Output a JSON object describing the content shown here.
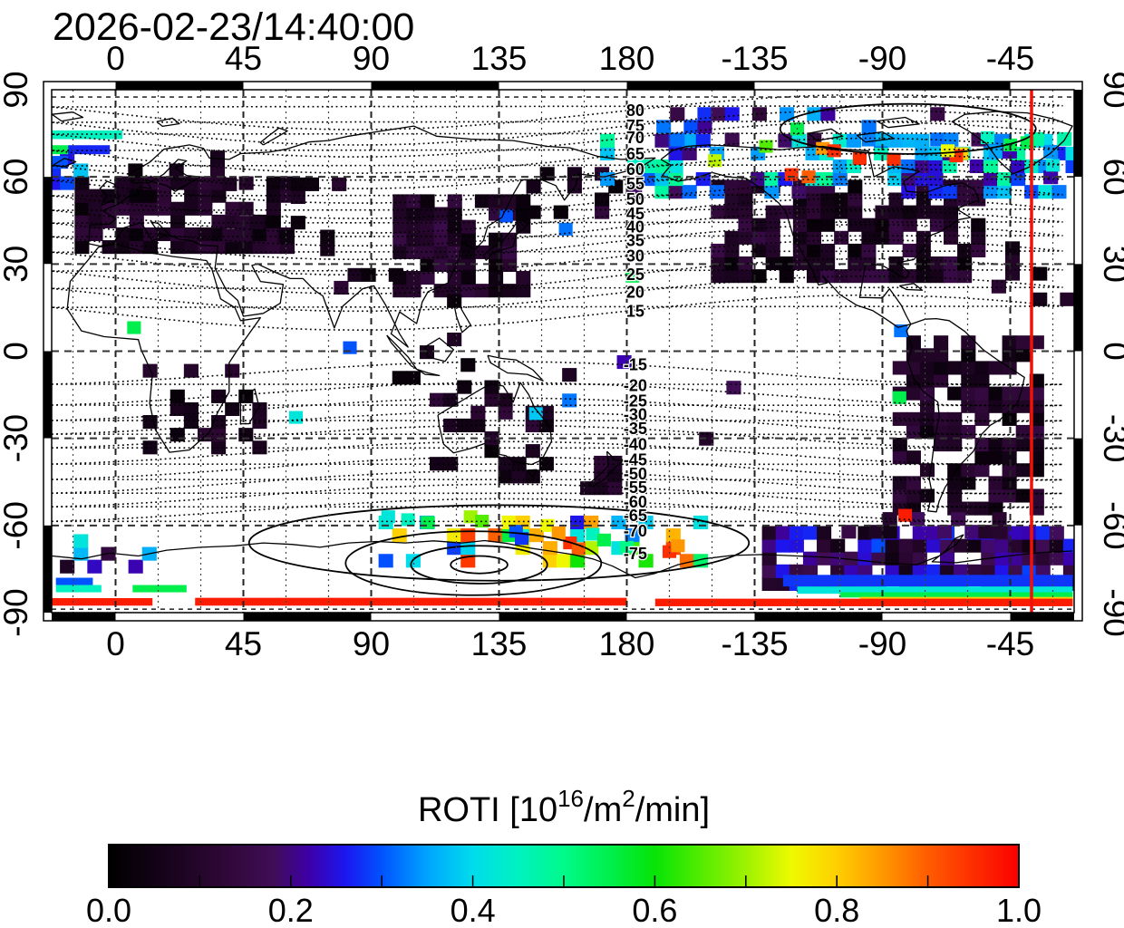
{
  "chart_data": {
    "type": "heatmap",
    "subtype": "global-ionosphere-roti-map",
    "title": "2026-02-23/14:40:00",
    "projection": "equirectangular",
    "lon_range": [
      -22.5,
      337.5
    ],
    "lat_range": [
      -90,
      90
    ],
    "lon_ticks": [
      {
        "label": "0",
        "lon": 0
      },
      {
        "label": "45",
        "lon": 45
      },
      {
        "label": "90",
        "lon": 90
      },
      {
        "label": "135",
        "lon": 135
      },
      {
        "label": "180",
        "lon": 180
      },
      {
        "label": "-135",
        "lon": -135
      },
      {
        "label": "-90",
        "lon": -90
      },
      {
        "label": "-45",
        "lon": -45
      }
    ],
    "lat_ticks": [
      {
        "label": "90",
        "lat": 90
      },
      {
        "label": "60",
        "lat": 60
      },
      {
        "label": "30",
        "lat": 30
      },
      {
        "label": "0",
        "lat": 0
      },
      {
        "label": "-30",
        "lat": -30
      },
      {
        "label": "-60",
        "lat": -60
      },
      {
        "label": "-90",
        "lat": -90
      }
    ],
    "grid": {
      "lon_minor_step": 15,
      "lon_major_step": 45,
      "lat_step": 30
    },
    "marker_meridian": {
      "lon": -37.5,
      "color": "#ee1208"
    },
    "contour_label_lon": 183,
    "contours_north": [
      {
        "value": "80",
        "lat": 82.8
      },
      {
        "value": "75",
        "lat": 77.5
      },
      {
        "value": "70",
        "lat": 73.4
      },
      {
        "value": "65",
        "lat": 67.8
      },
      {
        "value": "60",
        "lat": 62.5
      },
      {
        "value": "55",
        "lat": 57.5
      },
      {
        "value": "50",
        "lat": 52.2
      },
      {
        "value": "45",
        "lat": 47.2
      },
      {
        "value": "40",
        "lat": 42.8
      },
      {
        "value": "35",
        "lat": 38.1
      },
      {
        "value": "30",
        "lat": 32.8
      },
      {
        "value": "25",
        "lat": 26.3
      },
      {
        "value": "20",
        "lat": 20.3
      },
      {
        "value": "15",
        "lat": 13.8
      }
    ],
    "contours_south": [
      {
        "value": "-15",
        "lat": -4.7
      },
      {
        "value": "-20",
        "lat": -11.9
      },
      {
        "value": "-25",
        "lat": -17.2
      },
      {
        "value": "-30",
        "lat": -21.9
      },
      {
        "value": "-35",
        "lat": -26.6
      },
      {
        "value": "-40",
        "lat": -32.2
      },
      {
        "value": "-45",
        "lat": -37.5
      },
      {
        "value": "-50",
        "lat": -42.2
      },
      {
        "value": "-55",
        "lat": -46.9
      },
      {
        "value": "-60",
        "lat": -51.9
      },
      {
        "value": "-65",
        "lat": -56.6
      },
      {
        "value": "-70",
        "lat": -61.9
      },
      {
        "value": "-75",
        "lat": -69.7
      }
    ],
    "solid_contours": {
      "north_oval": {
        "clon": 279,
        "clat": 76.5,
        "rlon": 45,
        "rlat": 8.6
      },
      "south_ovals": [
        {
          "clon": 128,
          "clat": -73.5,
          "rlon": 10,
          "rlat": 3
        },
        {
          "clon": 128,
          "clat": -73.5,
          "rlon": 24,
          "rlat": 6.5
        },
        {
          "clon": 126,
          "clat": -73,
          "rlon": 45,
          "rlat": 11
        },
        {
          "clon": 135,
          "clat": -66,
          "rlon": 88,
          "rlat": 13
        }
      ]
    },
    "colormap": [
      {
        "v": 0.0,
        "c": "#000000"
      },
      {
        "v": 0.06,
        "c": "#16031a"
      },
      {
        "v": 0.12,
        "c": "#2c0733"
      },
      {
        "v": 0.18,
        "c": "#400d55"
      },
      {
        "v": 0.22,
        "c": "#3d00a8"
      },
      {
        "v": 0.26,
        "c": "#1c16f0"
      },
      {
        "v": 0.3,
        "c": "#0053ff"
      },
      {
        "v": 0.35,
        "c": "#00a4ff"
      },
      {
        "v": 0.4,
        "c": "#00dcec"
      },
      {
        "v": 0.45,
        "c": "#00f2c0"
      },
      {
        "v": 0.5,
        "c": "#00fa8a"
      },
      {
        "v": 0.55,
        "c": "#00ef4d"
      },
      {
        "v": 0.6,
        "c": "#06e406"
      },
      {
        "v": 0.65,
        "c": "#52ec00"
      },
      {
        "v": 0.7,
        "c": "#9df200"
      },
      {
        "v": 0.75,
        "c": "#eefa00"
      },
      {
        "v": 0.8,
        "c": "#ffcf00"
      },
      {
        "v": 0.85,
        "c": "#ff9800"
      },
      {
        "v": 0.9,
        "c": "#ff5c00"
      },
      {
        "v": 1.0,
        "c": "#fb0000"
      }
    ],
    "colorbar": {
      "title_parts": [
        {
          "t": "ROTI  [10"
        },
        {
          "t": "16",
          "sup": true
        },
        {
          "t": "/m"
        },
        {
          "t": "2",
          "sup": true
        },
        {
          "t": "/min]"
        }
      ],
      "range": [
        0,
        1
      ],
      "minor_tick_step": 0.1,
      "ticks": [
        {
          "label": "0.0",
          "v": 0.0
        },
        {
          "label": "0.2",
          "v": 0.2
        },
        {
          "label": "0.4",
          "v": 0.4
        },
        {
          "label": "0.6",
          "v": 0.6
        },
        {
          "label": "0.8",
          "v": 0.8
        },
        {
          "label": "1.0",
          "v": 1.0
        }
      ]
    },
    "cell_size_deg": {
      "lon": 4.82,
      "lat": 4.4
    },
    "regions": [
      {
        "name": "europe",
        "lon": [
          -12,
          62
        ],
        "lat": [
          36,
          58
        ],
        "density": 0.72,
        "value": [
          0.02,
          0.13
        ],
        "seed": 7
      },
      {
        "name": "north-europe",
        "lon": [
          2,
          40
        ],
        "lat": [
          58,
          67
        ],
        "density": 0.18,
        "value": [
          0.03,
          0.11
        ],
        "seed": 8
      },
      {
        "name": "central-asia",
        "lon": [
          40,
          96
        ],
        "lat": [
          40,
          58
        ],
        "density": 0.22,
        "value": [
          0.02,
          0.12
        ],
        "seed": 9
      },
      {
        "name": "south-asia",
        "lon": [
          60,
          100
        ],
        "lat": [
          22,
          40
        ],
        "density": 0.18,
        "value": [
          0.02,
          0.12
        ],
        "seed": 10
      },
      {
        "name": "east-asia",
        "lon": [
          100,
          147
        ],
        "lat": [
          21,
          53
        ],
        "density": 0.72,
        "value": [
          0.02,
          0.16
        ],
        "seed": 11
      },
      {
        "name": "kamchatka",
        "lon": [
          147,
          176
        ],
        "lat": [
          48,
          62
        ],
        "density": 0.3,
        "value": [
          0.02,
          0.14
        ],
        "seed": 12
      },
      {
        "name": "se-asia",
        "lon": [
          95,
          130
        ],
        "lat": [
          -9,
          18
        ],
        "density": 0.08,
        "value": [
          0.02,
          0.1
        ],
        "seed": 13
      },
      {
        "name": "north-america",
        "lon": [
          212,
          306
        ],
        "lat": [
          26,
          57
        ],
        "density": 0.72,
        "value": [
          0.02,
          0.16
        ],
        "seed": 14
      },
      {
        "name": "atlantic-dots",
        "lon": [
          306,
          337
        ],
        "lat": [
          18,
          40
        ],
        "density": 0.2,
        "value": [
          0.02,
          0.12
        ],
        "seed": 15
      },
      {
        "name": "northern-auroral-band",
        "lon": [
          173,
          337
        ],
        "lat": [
          55,
          73
        ],
        "density": 0.5,
        "value": [
          0.18,
          0.5
        ],
        "seed": 16
      },
      {
        "name": "arctic-dots",
        "lon": [
          188,
          322
        ],
        "lat": [
          73,
          85
        ],
        "density": 0.25,
        "value": [
          0.12,
          0.38
        ],
        "seed": 17
      },
      {
        "name": "south-america",
        "lon": [
          276,
          325
        ],
        "lat": [
          -54,
          6
        ],
        "density": 0.68,
        "value": [
          0.02,
          0.15
        ],
        "seed": 18
      },
      {
        "name": "southern-africa",
        "lon": [
          12,
          52
        ],
        "lat": [
          -33,
          -3
        ],
        "density": 0.38,
        "value": [
          0.02,
          0.12
        ],
        "seed": 19
      },
      {
        "name": "australia",
        "lon": [
          113,
          154
        ],
        "lat": [
          -43,
          -11
        ],
        "density": 0.3,
        "value": [
          0.02,
          0.13
        ],
        "seed": 20
      },
      {
        "name": "new-zealand",
        "lon": [
          166,
          179
        ],
        "lat": [
          -47,
          -34
        ],
        "density": 0.5,
        "value": [
          0.03,
          0.13
        ],
        "seed": 21
      },
      {
        "name": "antarctic-right",
        "lon": [
          230,
          337
        ],
        "lat": [
          -80,
          -62
        ],
        "density": 0.78,
        "value": [
          0.04,
          0.3
        ],
        "seed": 22
      },
      {
        "name": "antarctic-right-upper",
        "lon": [
          258,
          312
        ],
        "lat": [
          -62,
          -54
        ],
        "density": 0.5,
        "value": [
          0.04,
          0.2
        ],
        "seed": 28
      },
      {
        "name": "southern-auroral-oval",
        "lon": [
          95,
          210
        ],
        "lat": [
          -72,
          -57
        ],
        "density": 0.42,
        "value": [
          0.25,
          0.95
        ],
        "seed": 23
      },
      {
        "name": "antarctic-left",
        "lon": [
          -22,
          30
        ],
        "lat": [
          -74,
          -64
        ],
        "density": 0.3,
        "value": [
          0.05,
          0.45
        ],
        "seed": 24
      },
      {
        "name": "pacific-dots",
        "lon": [
          150,
          230
        ],
        "lat": [
          -30,
          0
        ],
        "density": 0.06,
        "value": [
          0.05,
          0.35
        ],
        "seed": 25
      },
      {
        "name": "greenland-band",
        "lon": [
          305,
          337
        ],
        "lat": [
          60,
          76
        ],
        "density": 0.4,
        "value": [
          0.2,
          0.55
        ],
        "seed": 26
      },
      {
        "name": "iceland-edge",
        "lon": [
          -22,
          -8
        ],
        "lat": [
          58,
          74
        ],
        "density": 0.45,
        "value": [
          0.25,
          0.5
        ],
        "seed": 27
      }
    ],
    "strips": [
      {
        "name": "nw-cyan-bar",
        "lon": [
          -22.5,
          2.4
        ],
        "lat": [
          73,
          76
        ],
        "value": 0.45
      },
      {
        "name": "nw-green",
        "lon": [
          -22.5,
          -16.7
        ],
        "lat": [
          67.8,
          70.9
        ],
        "value": 0.55
      },
      {
        "name": "nw-blue",
        "lon": [
          -16.7,
          -2
        ],
        "lat": [
          67.8,
          70.9
        ],
        "value": 0.27
      },
      {
        "name": "nw-blue2",
        "lon": [
          -22.5,
          -16.7
        ],
        "lat": [
          62.8,
          67.2
        ],
        "value": 0.3
      },
      {
        "name": "sr-blue-band",
        "lon": [
          235,
          337
        ],
        "lat": [
          -81,
          -77
        ],
        "value": 0.28
      },
      {
        "name": "sr-cyan-band",
        "lon": [
          240,
          337
        ],
        "lat": [
          -83.5,
          -81
        ],
        "value": 0.42
      },
      {
        "name": "sr-green-band",
        "lon": [
          255,
          337
        ],
        "lat": [
          -84.8,
          -83
        ],
        "value": 0.55
      },
      {
        "name": "sr-orange-band",
        "lon": [
          262,
          337
        ],
        "lat": [
          -86,
          -84.6
        ],
        "value": 0.8
      },
      {
        "name": "sr-red-band",
        "lon": [
          190,
          337
        ],
        "lat": [
          -87.8,
          -85.2
        ],
        "value": 0.97
      },
      {
        "name": "sm-red-band",
        "lon": [
          28,
          180
        ],
        "lat": [
          -87.6,
          -84.9
        ],
        "value": 0.97
      },
      {
        "name": "sl-red-band",
        "lon": [
          -22.5,
          13
        ],
        "lat": [
          -87.6,
          -85
        ],
        "value": 0.97
      },
      {
        "name": "sl-cyan",
        "lon": [
          -21,
          -5
        ],
        "lat": [
          -83,
          -80.5
        ],
        "value": 0.45
      },
      {
        "name": "sl-green",
        "lon": [
          6,
          25
        ],
        "lat": [
          -83,
          -80.5
        ],
        "value": 0.55
      },
      {
        "name": "sl-blue",
        "lon": [
          -21,
          -8
        ],
        "lat": [
          -80.5,
          -78
        ],
        "value": 0.3
      }
    ],
    "points": [
      {
        "lon": 6.5,
        "lat": 8.1,
        "value": 0.55
      },
      {
        "lon": 82.5,
        "lat": 1.2,
        "value": 0.3
      },
      {
        "lon": 63.5,
        "lat": -22.8,
        "value": 0.42
      },
      {
        "lon": 182,
        "lat": 25.8,
        "value": 0.55
      },
      {
        "lon": 137.5,
        "lat": 46.5,
        "value": 0.3
      },
      {
        "lon": 158.5,
        "lat": 42,
        "value": 0.32
      },
      {
        "lon": 148,
        "lat": -21.5,
        "value": 0.38
      },
      {
        "lon": 276.5,
        "lat": 7,
        "value": 0.32
      },
      {
        "lon": 276,
        "lat": -16,
        "value": 0.55
      },
      {
        "lon": 278,
        "lat": -56.5,
        "value": 0.97
      },
      {
        "lon": 211,
        "lat": 65.6,
        "value": 0.72
      },
      {
        "lon": 229,
        "lat": 70.5,
        "value": 0.65
      },
      {
        "lon": 240,
        "lat": 76.5,
        "value": 0.55
      },
      {
        "lon": 249,
        "lat": 69.8,
        "value": 0.85
      },
      {
        "lon": 253,
        "lat": 69,
        "value": 0.95
      },
      {
        "lon": 262,
        "lat": 66.3,
        "value": 0.95
      },
      {
        "lon": 274,
        "lat": 66,
        "value": 0.95
      },
      {
        "lon": 238,
        "lat": 60.8,
        "value": 0.95
      },
      {
        "lon": 244,
        "lat": 60,
        "value": 0.9
      },
      {
        "lon": 298,
        "lat": 68,
        "value": 0.8
      },
      {
        "lon": 296,
        "lat": 67.2,
        "value": 0.95
      },
      {
        "lon": 293,
        "lat": 69,
        "value": 0.75
      },
      {
        "lon": 315,
        "lat": 71,
        "value": 0.55
      },
      {
        "lon": 321,
        "lat": 71.8,
        "value": 0.55
      },
      {
        "lon": 330,
        "lat": 64,
        "value": 0.42
      },
      {
        "lon": 307,
        "lat": 73.5,
        "value": 0.45
      },
      {
        "lon": 160,
        "lat": -66,
        "value": 0.95
      },
      {
        "lon": 163,
        "lat": -68,
        "value": 0.9
      },
      {
        "lon": 195,
        "lat": -69,
        "value": 0.95
      },
      {
        "lon": 198,
        "lat": -67,
        "value": 0.85
      },
      {
        "lon": 125,
        "lat": -57,
        "value": 0.7
      },
      {
        "lon": 129,
        "lat": -58.5,
        "value": 0.65
      },
      {
        "lon": 110,
        "lat": -59,
        "value": 0.55
      },
      {
        "lon": 103,
        "lat": -58,
        "value": 0.45
      },
      {
        "lon": 96,
        "lat": -57,
        "value": 0.42
      },
      {
        "lon": 141,
        "lat": -62,
        "value": 0.3
      },
      {
        "lon": 143,
        "lat": -64.5,
        "value": 0.28
      },
      {
        "lon": 168,
        "lat": -63,
        "value": 0.45
      },
      {
        "lon": 172,
        "lat": -65,
        "value": 0.55
      },
      {
        "lon": 180,
        "lat": -67.5,
        "value": 0.5
      },
      {
        "lon": 152,
        "lat": -60,
        "value": 0.75
      },
      {
        "lon": 156,
        "lat": -62.5,
        "value": 0.85
      }
    ]
  }
}
